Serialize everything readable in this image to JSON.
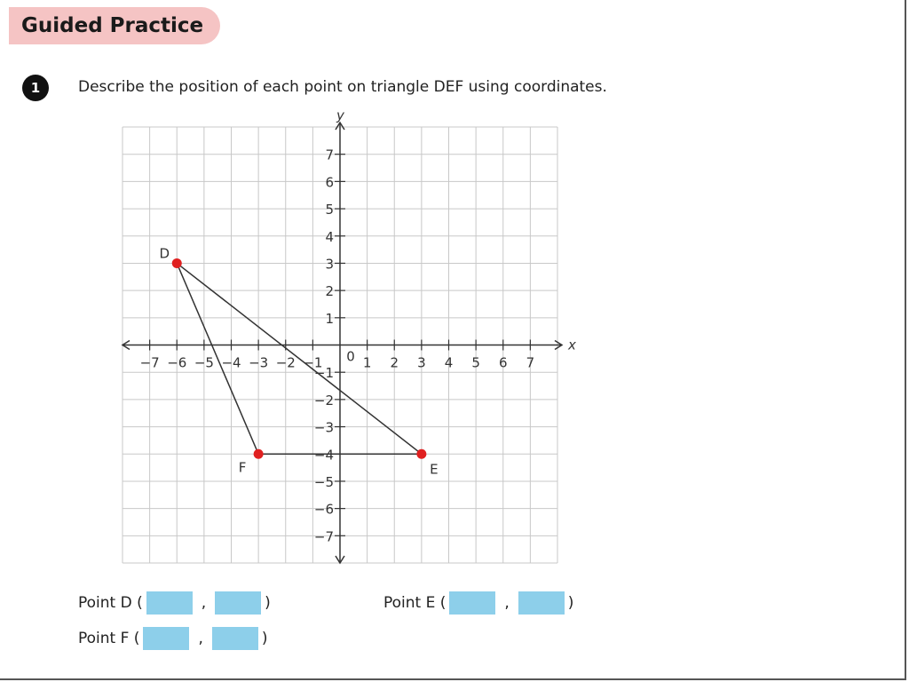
{
  "header": {
    "title": "Guided Practice"
  },
  "question": {
    "number": "1",
    "text": "Describe the position of each point on triangle DEF using coordinates."
  },
  "chart_data": {
    "type": "scatter",
    "title": "",
    "xlabel": "x",
    "ylabel": "y",
    "xlim": [
      -8,
      8
    ],
    "ylim": [
      -8,
      8
    ],
    "grid": true,
    "x_ticks": [
      -7,
      -6,
      -5,
      -4,
      -3,
      -2,
      -1,
      1,
      2,
      3,
      4,
      5,
      6,
      7
    ],
    "y_ticks": [
      -7,
      -6,
      -5,
      -4,
      -3,
      -2,
      -1,
      1,
      2,
      3,
      4,
      5,
      6,
      7
    ],
    "origin_label": "0",
    "points": [
      {
        "label": "D",
        "x": -6,
        "y": 3
      },
      {
        "label": "E",
        "x": 3,
        "y": -4
      },
      {
        "label": "F",
        "x": -3,
        "y": -4
      }
    ],
    "polygon": [
      "D",
      "E",
      "F"
    ],
    "point_color": "#e02020"
  },
  "answers": [
    {
      "label": "Point D (",
      "close": ")",
      "sep": ","
    },
    {
      "label": "Point E (",
      "close": ")",
      "sep": ","
    },
    {
      "label": "Point F (",
      "close": ")",
      "sep": ","
    }
  ]
}
